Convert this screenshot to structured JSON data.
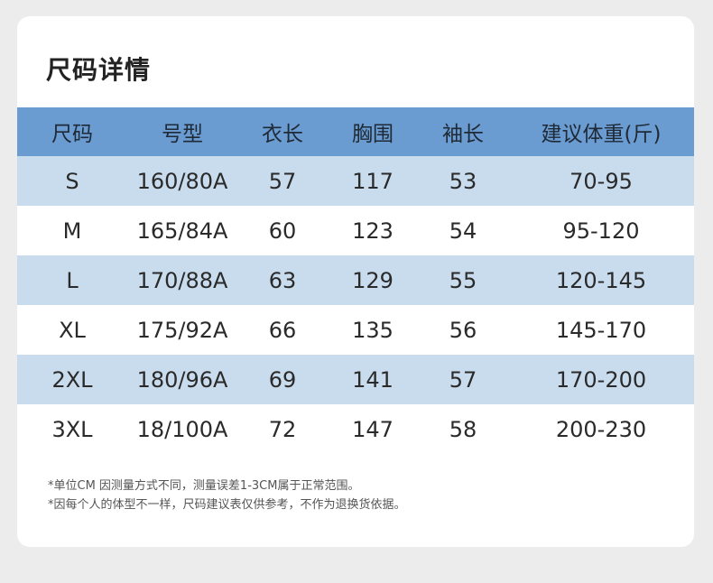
{
  "title": "尺码详情",
  "table": {
    "headers": [
      "尺码",
      "号型",
      "衣长",
      "胸围",
      "袖长",
      "建议体重(斤)"
    ],
    "rows": [
      [
        "S",
        "160/80A",
        "57",
        "117",
        "53",
        "70-95"
      ],
      [
        "M",
        "165/84A",
        "60",
        "123",
        "54",
        "95-120"
      ],
      [
        "L",
        "170/88A",
        "63",
        "129",
        "55",
        "120-145"
      ],
      [
        "XL",
        "175/92A",
        "66",
        "135",
        "56",
        "145-170"
      ],
      [
        "2XL",
        "180/96A",
        "69",
        "141",
        "57",
        "170-200"
      ],
      [
        "3XL",
        "18/100A",
        "72",
        "147",
        "58",
        "200-230"
      ]
    ]
  },
  "notes": [
    "*单位CM 因测量方式不同，测量误差1-3CM属于正常范围。",
    "*因每个人的体型不一样，尺码建议表仅供参考，不作为退换货依据。"
  ],
  "colors": {
    "header_bg": "#6a9bd1",
    "shaded_row_bg": "#c9dcee",
    "card_bg": "#ffffff",
    "page_bg": "#ececec"
  }
}
